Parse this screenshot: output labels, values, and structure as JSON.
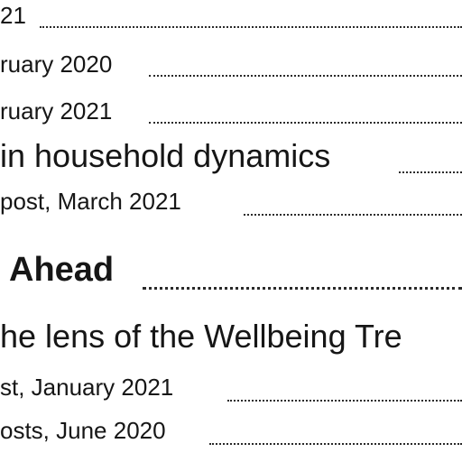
{
  "toc_entries": [
    {
      "text": "21"
    },
    {
      "text": "ruary 2020"
    },
    {
      "text": "ruary 2021"
    },
    {
      "text": "in household dynamics"
    },
    {
      "text": "post, March 2021"
    },
    {
      "text": "Ahead"
    },
    {
      "text": "he lens of the Wellbeing Tre"
    },
    {
      "text": "st, January 2021"
    },
    {
      "text": "osts, June 2020"
    }
  ]
}
